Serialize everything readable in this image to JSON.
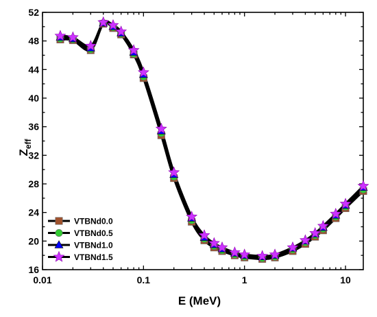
{
  "chart_data": {
    "type": "line",
    "xlabel": "E (MeV)",
    "ylabel": "Z",
    "ylabel_sub": "eff",
    "x_scale": "log",
    "xlim": [
      0.01,
      15
    ],
    "ylim": [
      16,
      52
    ],
    "x_ticks": [
      0.01,
      0.1,
      1,
      10
    ],
    "x_tick_labels": [
      "0.01",
      "0.1",
      "1",
      "10"
    ],
    "y_ticks": [
      16,
      20,
      24,
      28,
      32,
      36,
      40,
      44,
      48,
      52
    ],
    "grid": false,
    "legend_position": "bottom-left",
    "x": [
      0.015,
      0.02,
      0.03,
      0.04,
      0.05,
      0.06,
      0.08,
      0.1,
      0.15,
      0.2,
      0.3,
      0.4,
      0.5,
      0.6,
      0.8,
      1.0,
      1.5,
      2.0,
      3.0,
      4.0,
      5.0,
      6.0,
      8.0,
      10.0,
      15.0
    ],
    "series": [
      {
        "name": "VTBNd0.0",
        "marker": "square",
        "color": "#a0522d",
        "values": [
          48.2,
          48.1,
          46.7,
          50.4,
          49.8,
          48.9,
          46.1,
          42.8,
          34.8,
          28.8,
          22.7,
          20.1,
          19.1,
          18.6,
          18.0,
          17.7,
          17.5,
          17.7,
          18.6,
          19.6,
          20.6,
          21.5,
          23.2,
          24.6,
          27.0
        ]
      },
      {
        "name": "VTBNd0.5",
        "marker": "circle",
        "color": "#33cc33",
        "values": [
          48.3,
          48.2,
          46.8,
          50.5,
          49.9,
          49.0,
          46.2,
          43.0,
          35.1,
          29.0,
          22.9,
          20.3,
          19.3,
          18.7,
          18.1,
          17.8,
          17.6,
          17.8,
          18.8,
          19.8,
          20.8,
          21.7,
          23.4,
          24.8,
          27.2
        ]
      },
      {
        "name": "VTBNd1.0",
        "marker": "triangle",
        "color": "#0000ff",
        "values": [
          48.5,
          48.3,
          47.0,
          50.5,
          50.0,
          49.1,
          46.4,
          43.3,
          35.4,
          29.3,
          23.2,
          20.5,
          19.5,
          18.9,
          18.3,
          18.0,
          17.8,
          18.0,
          19.0,
          20.0,
          21.0,
          21.9,
          23.6,
          25.0,
          27.5
        ]
      },
      {
        "name": "VTBNd1.5",
        "marker": "star",
        "color": "#cc33ff",
        "values": [
          48.7,
          48.5,
          47.3,
          50.6,
          50.2,
          49.3,
          46.7,
          43.6,
          35.7,
          29.6,
          23.4,
          20.8,
          19.7,
          19.1,
          18.4,
          18.1,
          17.9,
          18.1,
          19.1,
          20.1,
          21.1,
          22.1,
          23.8,
          25.2,
          27.7
        ]
      }
    ],
    "line_color": "#000000"
  }
}
